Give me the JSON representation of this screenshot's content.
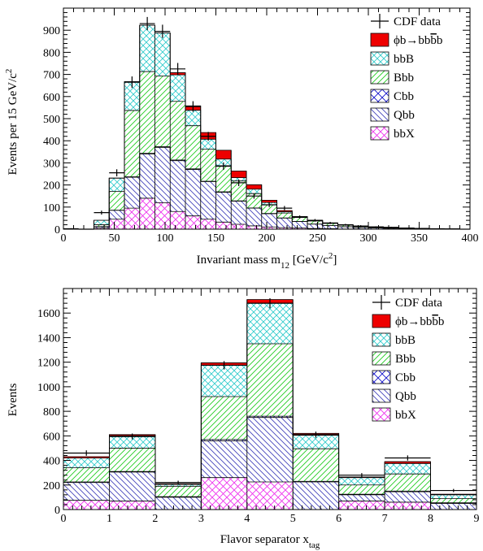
{
  "colors": {
    "signal": "#ee0000",
    "bbB": "#33cccc",
    "Bbb": "#22cc22",
    "Cbb": "#1111cc",
    "Qbb": "#4444bb",
    "bbX": "#ee33ee",
    "data": "#000000"
  },
  "chart_data": [
    {
      "type": "bar",
      "stacked": true,
      "xlabel": "Invariant mass m",
      "xlabel_sub": "12",
      "xlabel_unit": " [GeV/c",
      "xlabel_sup": "2",
      "xlabel_end": "]",
      "ylabel": "Events per 15 GeV/c",
      "ylabel_sup": "2",
      "xlim": [
        0,
        400
      ],
      "ylim": [
        0,
        1000
      ],
      "xticks": [
        0,
        50,
        100,
        150,
        200,
        250,
        300,
        350,
        400
      ],
      "yticks": [
        0,
        100,
        200,
        300,
        400,
        500,
        600,
        700,
        800,
        900
      ],
      "bin_edges": [
        0,
        15,
        30,
        45,
        60,
        75,
        90,
        105,
        120,
        135,
        150,
        165,
        180,
        195,
        210,
        225,
        240,
        255,
        270,
        285,
        300,
        315,
        330,
        345,
        360,
        375,
        390,
        400
      ],
      "legend_position": "top-right",
      "legend": [
        {
          "key": "data",
          "label": "CDF data"
        },
        {
          "key": "signal",
          "label": "ϕb→bb",
          "overline": "b",
          "label_tail": "b"
        },
        {
          "key": "bbB",
          "label": "bbB"
        },
        {
          "key": "Bbb",
          "label": "Bbb"
        },
        {
          "key": "Cbb",
          "label": "Cbb"
        },
        {
          "key": "Qbb",
          "label": "Qbb"
        },
        {
          "key": "bbX",
          "label": "bbX"
        }
      ],
      "series": [
        {
          "name": "bbX",
          "values": [
            0,
            0,
            5,
            45,
            95,
            140,
            120,
            80,
            60,
            45,
            32,
            22,
            15,
            10,
            7,
            5,
            3,
            2,
            1,
            1,
            0,
            0,
            0,
            0,
            0,
            0,
            0
          ]
        },
        {
          "name": "Qbb",
          "values": [
            0,
            0,
            7,
            40,
            140,
            200,
            250,
            230,
            210,
            170,
            135,
            105,
            80,
            60,
            43,
            30,
            20,
            14,
            10,
            7,
            5,
            4,
            3,
            2,
            1,
            1,
            0
          ]
        },
        {
          "name": "Cbb",
          "values": [
            0,
            0,
            0,
            1,
            2,
            3,
            3,
            3,
            3,
            2,
            2,
            1,
            1,
            1,
            1,
            0,
            0,
            0,
            0,
            0,
            0,
            0,
            0,
            0,
            0,
            0,
            0
          ]
        },
        {
          "name": "Bbb",
          "values": [
            0,
            0,
            8,
            85,
            300,
            370,
            320,
            265,
            195,
            145,
            118,
            90,
            65,
            40,
            22,
            18,
            14,
            10,
            7,
            5,
            4,
            3,
            2,
            2,
            1,
            1,
            0
          ]
        },
        {
          "name": "bbB",
          "values": [
            0,
            0,
            20,
            60,
            130,
            210,
            195,
            120,
            70,
            45,
            30,
            15,
            20,
            10,
            6,
            4,
            3,
            2,
            2,
            1,
            1,
            1,
            0,
            0,
            0,
            0,
            0
          ]
        },
        {
          "name": "signal",
          "values": [
            0,
            0,
            0,
            0,
            0,
            0,
            0,
            10,
            20,
            30,
            40,
            30,
            20,
            10,
            5,
            0,
            0,
            0,
            0,
            0,
            0,
            0,
            0,
            0,
            0,
            0,
            0
          ]
        }
      ],
      "data_points": {
        "x": [
          7.5,
          22.5,
          37.5,
          52.5,
          67.5,
          82.5,
          97.5,
          112.5,
          127.5,
          142.5,
          157.5,
          172.5,
          187.5,
          202.5,
          217.5,
          232.5,
          247.5,
          262.5,
          277.5,
          292.5,
          307.5,
          322.5,
          337.5,
          352.5,
          367.5,
          382.5,
          395
        ],
        "y": [
          2,
          0,
          75,
          255,
          665,
          930,
          895,
          725,
          555,
          420,
          285,
          210,
          150,
          110,
          95,
          55,
          40,
          28,
          20,
          14,
          10,
          8,
          5,
          3,
          2,
          1,
          0
        ],
        "err": [
          2,
          0,
          9,
          16,
          26,
          30,
          30,
          27,
          24,
          20,
          17,
          15,
          12,
          10,
          10,
          7,
          6,
          5,
          4,
          4,
          3,
          3,
          2,
          2,
          1,
          1,
          0
        ]
      }
    },
    {
      "type": "bar",
      "stacked": true,
      "xlabel": "Flavor separator x",
      "xlabel_sub": "tag",
      "ylabel": "Events",
      "xlim": [
        0,
        9
      ],
      "ylim": [
        0,
        1800
      ],
      "xticks": [
        0,
        1,
        2,
        3,
        4,
        5,
        6,
        7,
        8,
        9
      ],
      "yticks": [
        0,
        200,
        400,
        600,
        800,
        1000,
        1200,
        1400,
        1600
      ],
      "bin_edges": [
        0,
        1,
        2,
        3,
        4,
        5,
        6,
        7,
        8,
        9
      ],
      "legend_position": "top-right",
      "legend": [
        {
          "key": "data",
          "label": "CDF data"
        },
        {
          "key": "signal",
          "label": "ϕb→bb",
          "overline": "b",
          "label_tail": "b"
        },
        {
          "key": "bbB",
          "label": "bbB"
        },
        {
          "key": "Bbb",
          "label": "Bbb"
        },
        {
          "key": "Cbb",
          "label": "Cbb"
        },
        {
          "key": "Qbb",
          "label": "Qbb"
        },
        {
          "key": "bbX",
          "label": "bbX"
        }
      ],
      "series": [
        {
          "name": "bbX",
          "values": [
            75,
            70,
            0,
            260,
            225,
            0,
            70,
            60,
            0
          ]
        },
        {
          "name": "Qbb",
          "values": [
            145,
            235,
            100,
            300,
            525,
            225,
            50,
            85,
            50
          ]
        },
        {
          "name": "Cbb",
          "values": [
            5,
            5,
            5,
            10,
            10,
            5,
            5,
            5,
            5
          ]
        },
        {
          "name": "Bbb",
          "values": [
            115,
            190,
            85,
            350,
            590,
            265,
            75,
            140,
            35
          ]
        },
        {
          "name": "bbB",
          "values": [
            80,
            100,
            15,
            255,
            330,
            110,
            60,
            85,
            30
          ]
        },
        {
          "name": "signal",
          "values": [
            10,
            10,
            5,
            20,
            30,
            15,
            5,
            15,
            5
          ]
        }
      ],
      "data_points": {
        "x": [
          0.5,
          1.5,
          2.5,
          3.5,
          4.5,
          5.5,
          6.5,
          7.5,
          8.5
        ],
        "y": [
          460,
          595,
          220,
          1175,
          1680,
          610,
          280,
          420,
          155
        ],
        "err": [
          22,
          24,
          15,
          34,
          41,
          25,
          17,
          21,
          13
        ]
      }
    }
  ]
}
